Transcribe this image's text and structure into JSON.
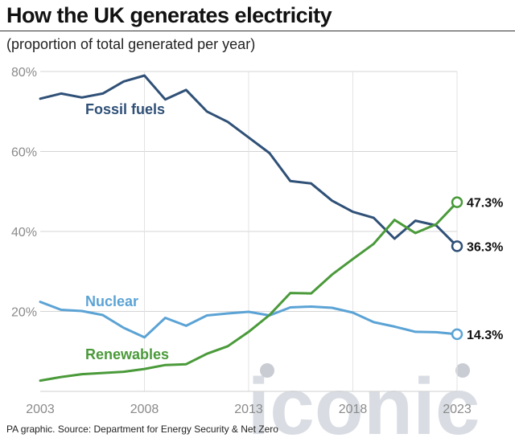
{
  "header": {
    "title": "How the UK generates electricity",
    "subtitle": "(proportion of total generated per year)"
  },
  "footer": {
    "source": "PA graphic. Source: Department for Energy Security & Net Zero"
  },
  "watermark": {
    "text": "iconic",
    "color": "#d9dde3"
  },
  "chart_data": {
    "type": "line",
    "title": "How the UK generates electricity",
    "subtitle": "(proportion of total generated per year)",
    "xlim": [
      2003,
      2023
    ],
    "ylim": [
      0,
      80
    ],
    "x_ticks": [
      2003,
      2008,
      2013,
      2018,
      2023
    ],
    "y_ticks": [
      20,
      40,
      60,
      80
    ],
    "y_tick_labels": [
      "20%",
      "40%",
      "60%",
      "80%"
    ],
    "grid": "horizontal",
    "x": [
      2003,
      2004,
      2005,
      2006,
      2007,
      2008,
      2009,
      2010,
      2011,
      2012,
      2013,
      2014,
      2015,
      2016,
      2017,
      2018,
      2019,
      2020,
      2021,
      2022,
      2023
    ],
    "series": [
      {
        "name": "Fossil fuels",
        "color": "#2f5077",
        "values": [
          73.2,
          74.5,
          73.5,
          74.5,
          77.5,
          79.0,
          73.0,
          75.4,
          70.0,
          67.4,
          63.5,
          59.6,
          52.6,
          52.0,
          47.7,
          44.9,
          43.4,
          38.2,
          42.7,
          41.5,
          36.3
        ],
        "end_label": "36.3%"
      },
      {
        "name": "Nuclear",
        "color": "#5ba3d5",
        "values": [
          22.4,
          20.4,
          20.1,
          19.1,
          15.9,
          13.5,
          18.4,
          16.4,
          19.0,
          19.5,
          19.9,
          19.0,
          21.0,
          21.2,
          20.9,
          19.7,
          17.3,
          16.2,
          14.9,
          14.8,
          14.3
        ],
        "end_label": "14.3%"
      },
      {
        "name": "Renewables",
        "color": "#4a9a3a",
        "values": [
          2.7,
          3.6,
          4.3,
          4.6,
          4.9,
          5.6,
          6.6,
          6.8,
          9.4,
          11.3,
          14.9,
          19.1,
          24.6,
          24.5,
          29.2,
          33.1,
          36.9,
          42.9,
          39.6,
          41.8,
          47.3
        ],
        "end_label": "47.3%"
      }
    ]
  }
}
